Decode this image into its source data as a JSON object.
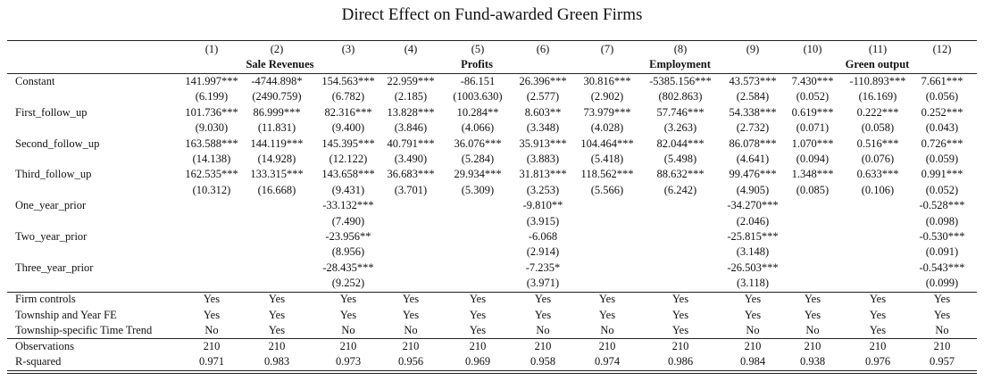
{
  "title": "Direct Effect on Fund-awarded Green Firms",
  "table": {
    "columns": [
      "(1)",
      "(2)",
      "(3)",
      "(4)",
      "(5)",
      "(6)",
      "(7)",
      "(8)",
      "(9)",
      "(10)",
      "(11)",
      "(12)"
    ],
    "groups": [
      {
        "label": "Sale Revenues",
        "span": 3
      },
      {
        "label": "Profits",
        "span": 3
      },
      {
        "label": "Employment",
        "span": 3
      },
      {
        "label": "Green output",
        "span": 3
      }
    ],
    "coefficients": [
      {
        "label": "Constant",
        "values": [
          "141.997***",
          "-4744.898*",
          "154.563***",
          "22.959***",
          "-86.151",
          "26.396***",
          "30.816***",
          "-5385.156***",
          "43.573***",
          "7.430***",
          "-110.893***",
          "7.661***"
        ],
        "se": [
          "(6.199)",
          "(2490.759)",
          "(6.782)",
          "(2.185)",
          "(1003.630)",
          "(2.577)",
          "(2.902)",
          "(802.863)",
          "(2.584)",
          "(0.052)",
          "(16.169)",
          "(0.056)"
        ]
      },
      {
        "label": "First_follow_up",
        "values": [
          "101.736***",
          "86.999***",
          "82.316***",
          "13.828***",
          "10.284**",
          "8.603**",
          "73.979***",
          "57.746***",
          "54.338***",
          "0.619***",
          "0.222***",
          "0.252***"
        ],
        "se": [
          "(9.030)",
          "(11.831)",
          "(9.400)",
          "(3.846)",
          "(4.066)",
          "(3.348)",
          "(4.028)",
          "(3.263)",
          "(2.732)",
          "(0.071)",
          "(0.058)",
          "(0.043)"
        ]
      },
      {
        "label": "Second_follow_up",
        "values": [
          "163.588***",
          "144.119***",
          "145.395***",
          "40.791***",
          "36.076***",
          "35.913***",
          "104.464***",
          "82.044***",
          "86.078***",
          "1.070***",
          "0.516***",
          "0.726***"
        ],
        "se": [
          "(14.138)",
          "(14.928)",
          "(12.122)",
          "(3.490)",
          "(5.284)",
          "(3.883)",
          "(5.418)",
          "(5.498)",
          "(4.641)",
          "(0.094)",
          "(0.076)",
          "(0.059)"
        ]
      },
      {
        "label": "Third_follow_up",
        "values": [
          "162.535***",
          "133.315***",
          "143.658***",
          "36.683***",
          "29.934***",
          "31.813***",
          "118.562***",
          "88.632***",
          "99.476***",
          "1.348***",
          "0.633***",
          "0.991***"
        ],
        "se": [
          "(10.312)",
          "(16.668)",
          "(9.431)",
          "(3.701)",
          "(5.309)",
          "(3.253)",
          "(5.566)",
          "(6.242)",
          "(4.905)",
          "(0.085)",
          "(0.106)",
          "(0.052)"
        ]
      },
      {
        "label": "One_year_prior",
        "values": [
          null,
          null,
          "-33.132***",
          null,
          null,
          "-9.810**",
          null,
          null,
          "-34.270***",
          null,
          null,
          "-0.528***"
        ],
        "se": [
          null,
          null,
          "(7.490)",
          null,
          null,
          "(3.915)",
          null,
          null,
          "(2.046)",
          null,
          null,
          "(0.098)"
        ]
      },
      {
        "label": "Two_year_prior",
        "values": [
          null,
          null,
          "-23.956**",
          null,
          null,
          "-6.068",
          null,
          null,
          "-25.815***",
          null,
          null,
          "-0.530***"
        ],
        "se": [
          null,
          null,
          "(8.956)",
          null,
          null,
          "(2.914)",
          null,
          null,
          "(3.148)",
          null,
          null,
          "(0.091)"
        ]
      },
      {
        "label": "Three_year_prior",
        "values": [
          null,
          null,
          "-28.435***",
          null,
          null,
          "-7.235*",
          null,
          null,
          "-26.503***",
          null,
          null,
          "-0.543***"
        ],
        "se": [
          null,
          null,
          "(9.252)",
          null,
          null,
          "(3.971)",
          null,
          null,
          "(3.118)",
          null,
          null,
          "(0.099)"
        ]
      }
    ],
    "controls": [
      {
        "label": "Firm controls",
        "values": [
          "Yes",
          "Yes",
          "Yes",
          "Yes",
          "Yes",
          "Yes",
          "Yes",
          "Yes",
          "Yes",
          "Yes",
          "Yes",
          "Yes"
        ]
      },
      {
        "label": "Township and Year FE",
        "values": [
          "Yes",
          "Yes",
          "Yes",
          "Yes",
          "Yes",
          "Yes",
          "Yes",
          "Yes",
          "Yes",
          "Yes",
          "Yes",
          "Yes"
        ]
      },
      {
        "label": "Township-specific Time Trend",
        "values": [
          "No",
          "Yes",
          "No",
          "No",
          "Yes",
          "No",
          "No",
          "Yes",
          "No",
          "No",
          "Yes",
          "No"
        ]
      }
    ],
    "stats": [
      {
        "label": "Observations",
        "values": [
          "210",
          "210",
          "210",
          "210",
          "210",
          "210",
          "210",
          "210",
          "210",
          "210",
          "210",
          "210"
        ]
      },
      {
        "label": "R-squared",
        "values": [
          "0.971",
          "0.983",
          "0.973",
          "0.956",
          "0.969",
          "0.958",
          "0.974",
          "0.986",
          "0.984",
          "0.938",
          "0.976",
          "0.957"
        ]
      }
    ]
  }
}
